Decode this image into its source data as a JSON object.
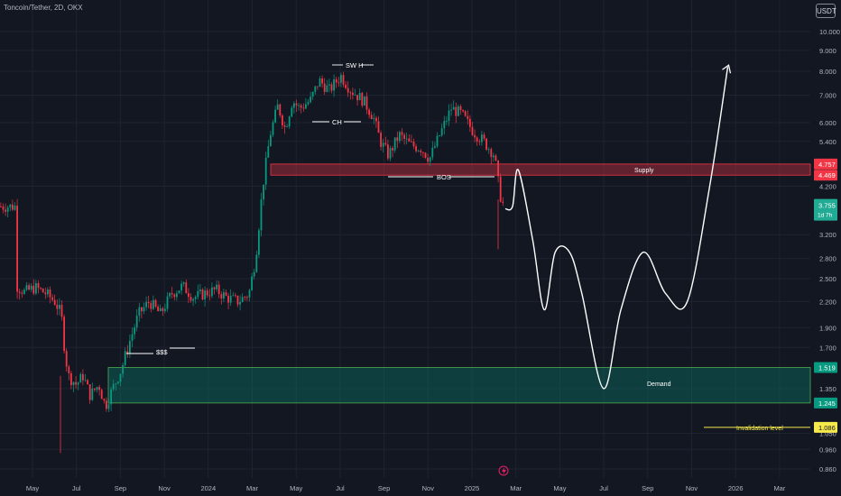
{
  "header": {
    "symbol_title": "Toncoin/Tether, 2D, OKX",
    "currency": "USDT"
  },
  "chart_data": {
    "type": "candlestick",
    "scale": "log",
    "y_ticks": [
      "10.000",
      "9.000",
      "8.000",
      "7.000",
      "6.000",
      "5.400",
      "4.200",
      "3.200",
      "2.800",
      "2.500",
      "2.200",
      "1.900",
      "1.700",
      "1.350",
      "1.050",
      "0.960",
      "0.860"
    ],
    "x_ticks": [
      "May",
      "Jul",
      "Sep",
      "Nov",
      "2024",
      "Mar",
      "May",
      "Jul",
      "Sep",
      "Nov",
      "2025",
      "Mar",
      "May",
      "Jul",
      "Sep",
      "Nov",
      "2026",
      "Mar"
    ],
    "ohlc_path": [
      [
        "2023-04-10",
        2.4
      ],
      [
        "2023-04-20",
        2.32
      ],
      [
        "2023-05-05",
        2.38
      ],
      [
        "2023-05-20",
        2.3
      ],
      [
        "2023-06-01",
        2.2
      ],
      [
        "2023-06-10",
        2.05
      ],
      [
        "2023-06-15",
        1.65
      ],
      [
        "2023-06-20",
        1.45
      ],
      [
        "2023-07-01",
        1.38
      ],
      [
        "2023-07-10",
        1.45
      ],
      [
        "2023-07-20",
        1.3
      ],
      [
        "2023-08-01",
        1.38
      ],
      [
        "2023-08-10",
        1.22
      ],
      [
        "2023-08-20",
        1.35
      ],
      [
        "2023-09-01",
        1.5
      ],
      [
        "2023-09-10",
        1.7
      ],
      [
        "2023-09-25",
        2.05
      ],
      [
        "2023-10-10",
        2.2
      ],
      [
        "2023-10-25",
        2.05
      ],
      [
        "2023-11-10",
        2.3
      ],
      [
        "2023-11-25",
        2.4
      ],
      [
        "2023-12-10",
        2.25
      ],
      [
        "2023-12-25",
        2.3
      ],
      [
        "2024-01-10",
        2.35
      ],
      [
        "2024-01-25",
        2.25
      ],
      [
        "2024-02-10",
        2.2
      ],
      [
        "2024-02-25",
        2.3
      ],
      [
        "2024-03-05",
        2.8
      ],
      [
        "2024-03-15",
        4.2
      ],
      [
        "2024-03-25",
        5.6
      ],
      [
        "2024-04-05",
        6.6
      ],
      [
        "2024-04-15",
        5.8
      ],
      [
        "2024-04-25",
        6.8
      ],
      [
        "2024-05-05",
        6.5
      ],
      [
        "2024-05-20",
        6.8
      ],
      [
        "2024-06-01",
        7.6
      ],
      [
        "2024-06-15",
        7.2
      ],
      [
        "2024-07-01",
        7.8
      ],
      [
        "2024-07-15",
        7.2
      ],
      [
        "2024-08-01",
        6.8
      ],
      [
        "2024-08-15",
        6.2
      ],
      [
        "2024-08-25",
        5.4
      ],
      [
        "2024-09-05",
        5.0
      ],
      [
        "2024-09-20",
        5.6
      ],
      [
        "2024-10-05",
        5.3
      ],
      [
        "2024-10-20",
        5.2
      ],
      [
        "2024-11-01",
        4.9
      ],
      [
        "2024-11-15",
        5.6
      ],
      [
        "2024-12-01",
        6.5
      ],
      [
        "2024-12-15",
        6.3
      ],
      [
        "2025-01-01",
        5.7
      ],
      [
        "2025-01-15",
        5.4
      ],
      [
        "2025-01-30",
        5.0
      ],
      [
        "2025-02-03",
        4.4
      ],
      [
        "2025-02-08",
        3.9
      ],
      [
        "2025-02-12",
        3.75
      ]
    ],
    "levels": [
      {
        "name": "supply_top",
        "value": 4.757,
        "label": "4.757",
        "color": "#f23645"
      },
      {
        "name": "supply_bottom",
        "value": 4.469,
        "label": "4.469",
        "color": "#f23645"
      },
      {
        "name": "demand_top",
        "value": 1.519,
        "label": "1.519",
        "color": "#089981"
      },
      {
        "name": "demand_bottom",
        "value": 1.245,
        "label": "1.245",
        "color": "#089981"
      },
      {
        "name": "invalidation",
        "value": 1.086,
        "label": "1.086",
        "color": "#f5e94b"
      }
    ],
    "last_price": {
      "value": 3.755,
      "label": "3.755",
      "countdown": "1d 7h",
      "color": "#22ab94"
    },
    "annotations": {
      "swing_high": "SW H",
      "change": "CH",
      "break_of_structure": "BOS",
      "liquidity": "$$$",
      "supply": "Supply",
      "demand": "Demand",
      "invalidation": "Invalidation level"
    },
    "projection": [
      [
        "2025-02-15",
        3.7
      ],
      [
        "2025-02-25",
        3.75
      ],
      [
        "2025-03-05",
        4.6
      ],
      [
        "2025-03-25",
        3.1
      ],
      [
        "2025-04-10",
        2.1
      ],
      [
        "2025-04-25",
        2.9
      ],
      [
        "2025-05-15",
        2.9
      ],
      [
        "2025-06-01",
        2.3
      ],
      [
        "2025-07-01",
        1.35
      ],
      [
        "2025-07-25",
        2.1
      ],
      [
        "2025-08-25",
        2.9
      ],
      [
        "2025-09-25",
        2.3
      ],
      [
        "2025-10-25",
        2.2
      ],
      [
        "2025-11-25",
        4.2
      ],
      [
        "2025-12-20",
        8.2
      ]
    ],
    "colors": {
      "up": "#089981",
      "down": "#f23645",
      "background": "#131722",
      "grid": "#1f2330",
      "projection": "#ffffff"
    }
  }
}
